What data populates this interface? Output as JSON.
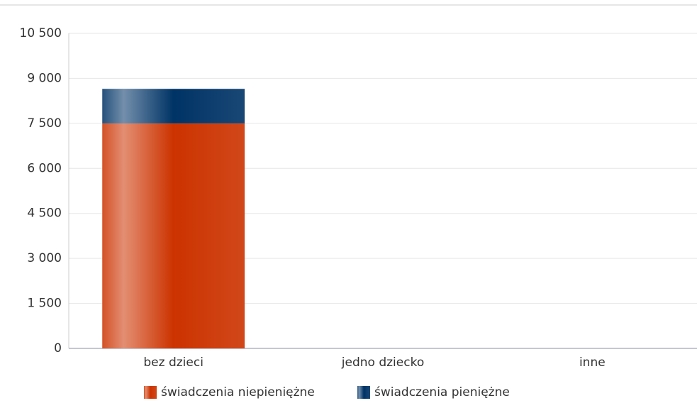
{
  "chart_data": {
    "type": "bar",
    "stacked": true,
    "categories": [
      "bez dzieci",
      "jedno dziecko",
      "inne"
    ],
    "series": [
      {
        "name": "świadczenia niepieniężne",
        "color": "#cc3300",
        "values": [
          7500,
          0,
          0
        ]
      },
      {
        "name": "świadczenia pieniężne",
        "color": "#003366",
        "values": [
          1150,
          0,
          0
        ]
      }
    ],
    "ylim": [
      0,
      10500
    ],
    "yticks": [
      0,
      {
        "value": 1500,
        "label": "1 500"
      },
      {
        "value": 3000,
        "label": "3 000"
      },
      {
        "value": 4500,
        "label": "4 500"
      },
      {
        "value": 6000,
        "label": "6 000"
      },
      {
        "value": 7500,
        "label": "7 500"
      },
      {
        "value": 9000,
        "label": "9 000"
      },
      {
        "value": 10500,
        "label": "10 500"
      }
    ],
    "grid": true
  }
}
